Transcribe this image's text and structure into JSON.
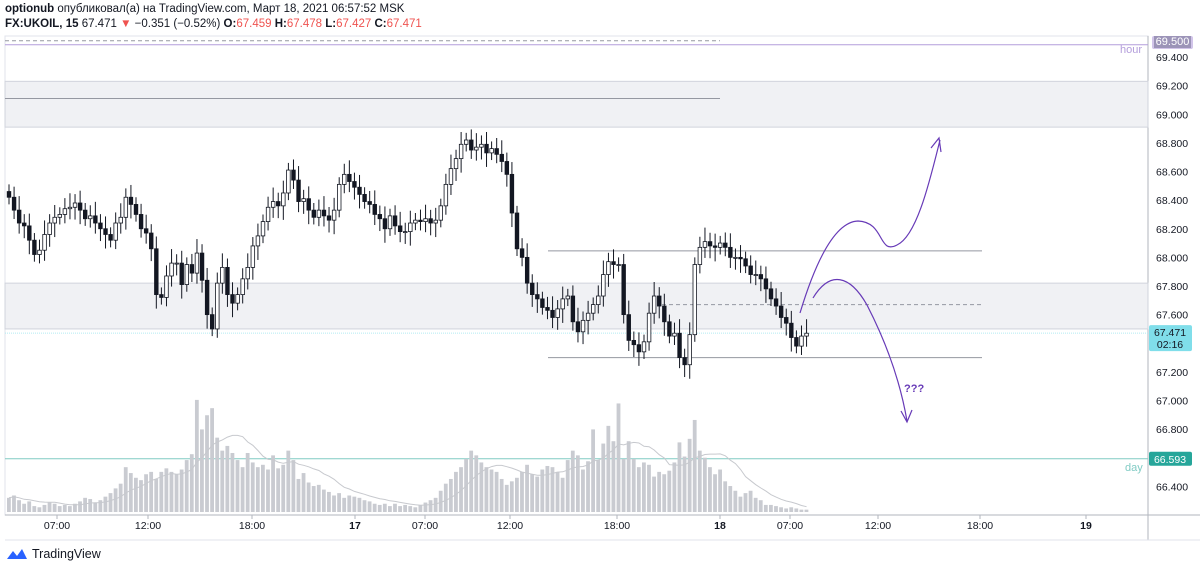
{
  "header": {
    "publisher": "optionub",
    "published_text": "опубликовал(а) на TradingView.com, Март 18, 2021 06:57:52 MSK",
    "symbol": "FX:UKOIL, 15",
    "last": "67.471",
    "change": "−0.351 (−0.52%)",
    "o_label": "O:",
    "o": "67.459",
    "h_label": "H:",
    "h": "67.478",
    "l_label": "L:",
    "l": "67.427",
    "c_label": "C:",
    "c": "67.471"
  },
  "footer": {
    "brand": "TradingView"
  },
  "chart_data": {
    "type": "candlestick",
    "y_axis": {
      "min": 66.2,
      "max": 69.55,
      "ticks": [
        "69.400",
        "69.200",
        "69.000",
        "68.800",
        "68.600",
        "68.400",
        "68.200",
        "68.000",
        "67.800",
        "67.600",
        "67.400",
        "67.200",
        "67.000",
        "66.800",
        "66.600",
        "66.400"
      ]
    },
    "x_axis": {
      "ticks": [
        "07:00",
        "12:00",
        "18:00",
        "17",
        "07:00",
        "12:00",
        "18:00",
        "18",
        "07:00",
        "12:00",
        "18:00",
        "19"
      ],
      "tick_bold": [
        false,
        false,
        false,
        true,
        false,
        false,
        false,
        true,
        false,
        false,
        false,
        true
      ]
    },
    "price_labels": {
      "hour_level": "69.500",
      "hour_text": "hour",
      "last_price": "67.471",
      "countdown": "02:16",
      "day_level": "66.593",
      "day_text": "day"
    },
    "annotation": "???",
    "levels": {
      "hour": 69.5,
      "day": 66.593,
      "last": 67.471,
      "zone_upper": [
        68.91,
        69.23
      ],
      "zone_lower": [
        67.5,
        67.82
      ],
      "box_top": 68.045,
      "box_mid": 67.67,
      "box_bottom": 67.3,
      "top_grey": 69.11
    },
    "closes": [
      68.42,
      68.33,
      68.24,
      68.22,
      68.12,
      68.02,
      68.05,
      68.16,
      68.24,
      68.28,
      68.3,
      68.34,
      68.35,
      68.38,
      68.33,
      68.27,
      68.29,
      68.24,
      68.2,
      68.16,
      68.12,
      68.24,
      68.28,
      68.42,
      68.37,
      68.3,
      68.2,
      68.17,
      68.06,
      67.74,
      67.72,
      67.87,
      67.96,
      67.96,
      67.81,
      67.95,
      67.89,
      68.03,
      67.84,
      67.6,
      67.5,
      67.82,
      67.93,
      67.74,
      67.68,
      67.74,
      67.85,
      67.93,
      68.08,
      68.15,
      68.25,
      68.35,
      68.39,
      68.36,
      68.45,
      68.61,
      68.54,
      68.39,
      68.41,
      68.33,
      68.28,
      68.33,
      68.29,
      68.26,
      68.33,
      68.51,
      68.58,
      68.53,
      68.49,
      68.44,
      68.39,
      68.37,
      68.3,
      68.27,
      68.2,
      68.29,
      68.22,
      68.18,
      68.18,
      68.24,
      68.26,
      68.25,
      68.27,
      68.24,
      68.26,
      68.36,
      68.51,
      68.62,
      68.69,
      68.79,
      68.82,
      68.75,
      68.77,
      68.79,
      68.73,
      68.76,
      68.72,
      68.67,
      68.58,
      68.31,
      68.06,
      68.0,
      67.82,
      67.74,
      67.71,
      67.65,
      67.63,
      67.58,
      67.64,
      67.71,
      67.73,
      67.55,
      67.48,
      67.56,
      67.61,
      67.67,
      67.73,
      67.88,
      67.97,
      67.95,
      67.95,
      67.6,
      67.42,
      67.39,
      67.34,
      67.41,
      67.61,
      67.73,
      67.66,
      67.55,
      67.45,
      67.47,
      67.3,
      67.25,
      67.46,
      67.95,
      68.07,
      68.11,
      68.08,
      68.07,
      68.1,
      68.07,
      68.0,
      68.0,
      67.99,
      67.94,
      67.88,
      67.88,
      67.85,
      67.78,
      67.71,
      67.66,
      67.58,
      67.54,
      67.44,
      67.38,
      67.45,
      67.47
    ],
    "volumes": [
      0.12,
      0.14,
      0.1,
      0.07,
      0.09,
      0.05,
      0.04,
      0.06,
      0.08,
      0.07,
      0.05,
      0.06,
      0.05,
      0.07,
      0.09,
      0.12,
      0.11,
      0.08,
      0.1,
      0.13,
      0.16,
      0.2,
      0.24,
      0.38,
      0.33,
      0.29,
      0.27,
      0.32,
      0.34,
      0.28,
      0.34,
      0.37,
      0.34,
      0.32,
      0.36,
      0.44,
      0.49,
      0.95,
      0.7,
      0.82,
      0.88,
      0.63,
      0.52,
      0.56,
      0.5,
      0.44,
      0.38,
      0.5,
      0.42,
      0.38,
      0.4,
      0.36,
      0.48,
      0.37,
      0.4,
      0.52,
      0.44,
      0.28,
      0.33,
      0.25,
      0.22,
      0.23,
      0.19,
      0.17,
      0.14,
      0.16,
      0.12,
      0.14,
      0.13,
      0.12,
      0.1,
      0.09,
      0.07,
      0.06,
      0.07,
      0.05,
      0.07,
      0.05,
      0.06,
      0.05,
      0.04,
      0.06,
      0.08,
      0.1,
      0.12,
      0.18,
      0.24,
      0.28,
      0.34,
      0.38,
      0.45,
      0.52,
      0.48,
      0.42,
      0.38,
      0.36,
      0.34,
      0.28,
      0.23,
      0.26,
      0.29,
      0.34,
      0.4,
      0.32,
      0.3,
      0.36,
      0.39,
      0.38,
      0.34,
      0.29,
      0.44,
      0.52,
      0.48,
      0.36,
      0.43,
      0.7,
      0.44,
      0.58,
      0.73,
      0.6,
      0.92,
      0.45,
      0.6,
      0.45,
      0.38,
      0.42,
      0.4,
      0.3,
      0.34,
      0.32,
      0.35,
      0.42,
      0.59,
      0.47,
      0.62,
      0.78,
      0.52,
      0.46,
      0.38,
      0.32,
      0.36,
      0.26,
      0.22,
      0.18,
      0.13,
      0.16,
      0.18,
      0.12,
      0.1,
      0.06,
      0.06,
      0.05,
      0.04,
      0.03,
      0.04,
      0.03,
      0.02,
      0.02
    ]
  }
}
